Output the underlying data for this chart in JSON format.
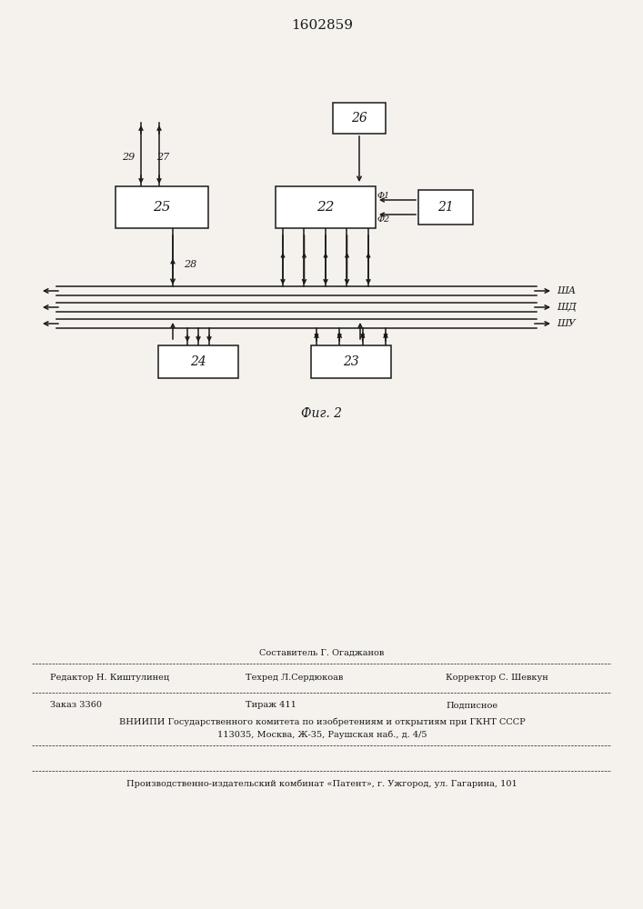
{
  "title": "1602859",
  "fig_caption": "Фиг. 2",
  "bg": "#f5f2ee",
  "lc": "#1a1a1a",
  "lw": 1.1,
  "footer": {
    "sestavitel": "Составитель Г. Огаджанов",
    "redaktor": "Редактор Н. Киштулинец",
    "tehred": "Техред Л.Сердюкоав",
    "korrektor": "Корректор С. Шевкун",
    "zakaz": "Заказ 3360",
    "tirazh": "Тираж 411",
    "podpisnoe": "Подписное",
    "vniipis": "ВНИИПИ Государственного комитета по изобретениям и открытиям при ГКНТ СССР",
    "address": "113035, Москва, Ж-35, Раушская наб., д. 4/5",
    "patent": "Производственно-издательский комбинат «Патент», г. Ужгород, ул. Гагарина, 101"
  }
}
